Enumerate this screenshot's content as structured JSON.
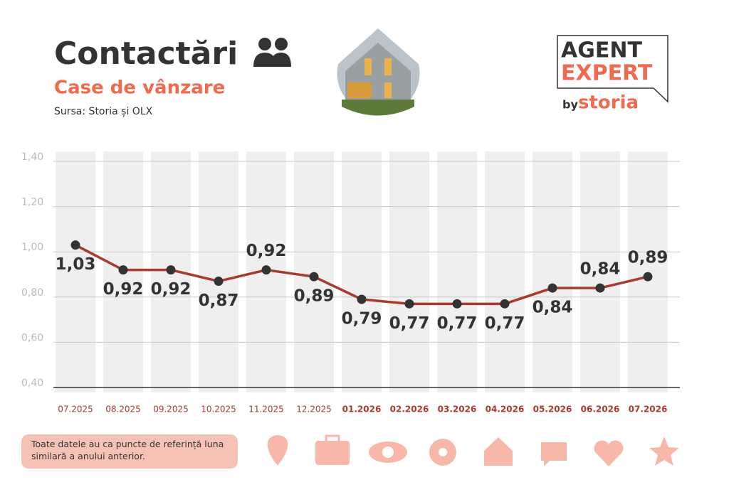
{
  "header": {
    "title": "Contactări",
    "subtitle": "Case de vânzare",
    "source": "Sursa: Storia și OLX"
  },
  "logo": {
    "line1": "AGENT",
    "line2": "EXPERT",
    "by": "by",
    "brand": "storia"
  },
  "footnote": "Toate datele au ca puncte de referință luna similară a anului anterior.",
  "chart_data": {
    "type": "line",
    "categories": [
      "07.2025",
      "08.2025",
      "09.2025",
      "10.2025",
      "11.2025",
      "12.2025",
      "01.2026",
      "02.2026",
      "03.2026",
      "04.2026",
      "05.2026",
      "06.2026",
      "07.2026"
    ],
    "series": [
      {
        "name": "Contactări",
        "color": "#a83a2f",
        "values": [
          1.03,
          0.92,
          0.92,
          0.87,
          0.92,
          0.89,
          0.79,
          0.77,
          0.77,
          0.77,
          0.84,
          0.84,
          0.89
        ],
        "value_labels": [
          "1,03",
          "0,92",
          "0,92",
          "0,87",
          "0,92",
          "0,89",
          "0,79",
          "0,77",
          "0,77",
          "0,77",
          "0,84",
          "0,84",
          "0,89"
        ]
      }
    ],
    "ylim": [
      0.4,
      1.4
    ],
    "yticks": [
      {
        "value": 0.4,
        "label": "0,40"
      },
      {
        "value": 0.6,
        "label": "0,60"
      },
      {
        "value": 0.8,
        "label": "0,80"
      },
      {
        "value": 1.0,
        "label": "1,00"
      },
      {
        "value": 1.2,
        "label": "1,20"
      },
      {
        "value": 1.4,
        "label": "1,40"
      }
    ],
    "grid": true
  }
}
